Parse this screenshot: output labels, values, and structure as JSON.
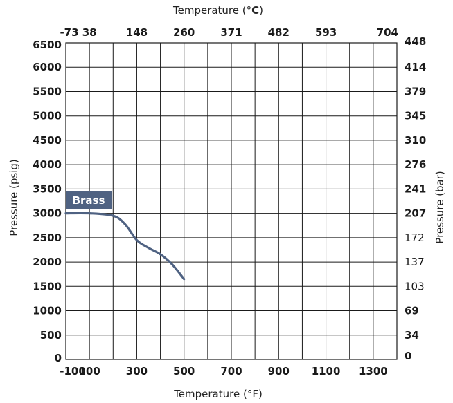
{
  "chart_data": {
    "type": "line",
    "title": "",
    "top_axis": {
      "label_prefix": "Temperature (°",
      "label_unit": "C",
      "label_suffix": ")",
      "ticks": [
        "-73",
        "38",
        "148",
        "260",
        "371",
        "482",
        "593",
        "704"
      ]
    },
    "bottom_axis": {
      "label": "Temperature (°F)",
      "ticks": [
        "-100",
        "100",
        "300",
        "500",
        "700",
        "900",
        "1100",
        "1300"
      ],
      "range": [
        -100,
        1300
      ]
    },
    "left_axis": {
      "label": "Pressure (psig)",
      "ticks": [
        "6500",
        "6000",
        "5500",
        "5000",
        "4500",
        "4000",
        "3500",
        "3000",
        "2500",
        "2000",
        "1500",
        "1000",
        "500",
        "0"
      ],
      "range": [
        0,
        6500
      ]
    },
    "right_axis": {
      "label": "Pressure (bar)",
      "ticks": [
        "448",
        "414",
        "379",
        "345",
        "310",
        "276",
        "241",
        "207",
        "172",
        "137",
        "103",
        "69",
        "34",
        "0"
      ]
    },
    "grid": true,
    "x_divisions": 14,
    "y_divisions": 13,
    "series": [
      {
        "name": "Brass",
        "color": "#4f6282",
        "points": [
          {
            "x": -100,
            "y": 3000
          },
          {
            "x": 0,
            "y": 3000
          },
          {
            "x": 100,
            "y": 2950
          },
          {
            "x": 150,
            "y": 2780
          },
          {
            "x": 200,
            "y": 2450
          },
          {
            "x": 250,
            "y": 2290
          },
          {
            "x": 300,
            "y": 2160
          },
          {
            "x": 350,
            "y": 1950
          },
          {
            "x": 400,
            "y": 1650
          }
        ]
      }
    ],
    "legend": {
      "label": "Brass",
      "placement": "upper-left inside plot"
    }
  }
}
